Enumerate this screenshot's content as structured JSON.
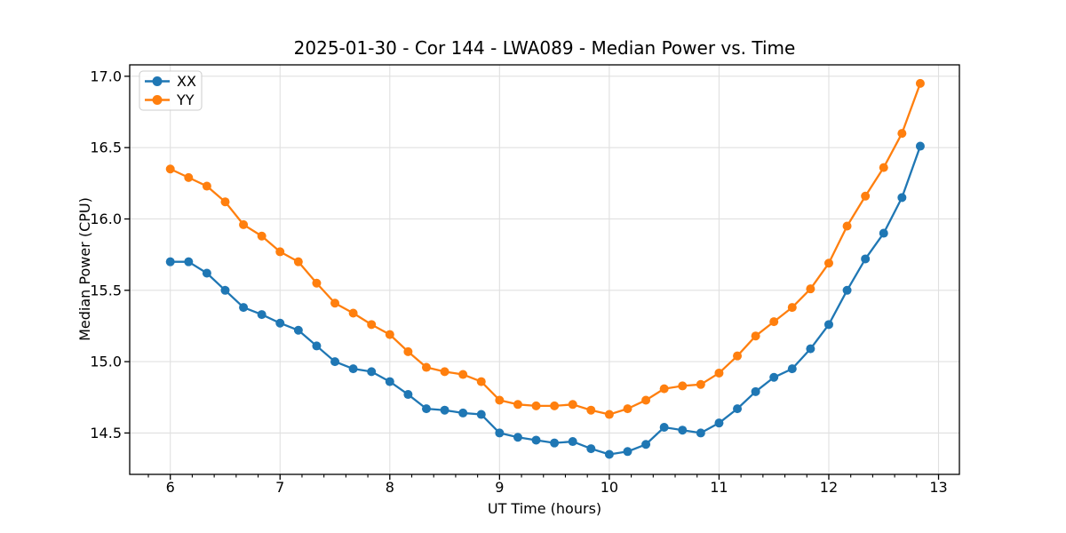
{
  "figure": {
    "background": "#ffffff"
  },
  "chart_data": {
    "type": "line",
    "title": "2025-01-30 - Cor 144 - LWA089 - Median Power vs. Time",
    "xlabel": "UT Time (hours)",
    "ylabel": "Median Power (CPU)",
    "xlim": [
      5.63,
      13.19
    ],
    "ylim": [
      14.21,
      17.08
    ],
    "x_ticks": [
      6,
      7,
      8,
      9,
      10,
      11,
      12,
      13
    ],
    "y_ticks": [
      14.5,
      15.0,
      15.5,
      16.0,
      16.5,
      17.0
    ],
    "x_minor_tick_step": 0.2,
    "grid": true,
    "legend_position": "upper-left",
    "x": [
      6.0,
      6.1667,
      6.3333,
      6.5,
      6.6667,
      6.8333,
      7.0,
      7.1667,
      7.3333,
      7.5,
      7.6667,
      7.8333,
      8.0,
      8.1667,
      8.3333,
      8.5,
      8.6667,
      8.8333,
      9.0,
      9.1667,
      9.3333,
      9.5,
      9.6667,
      9.8333,
      10.0,
      10.1667,
      10.3333,
      10.5,
      10.6667,
      10.8333,
      11.0,
      11.1667,
      11.3333,
      11.5,
      11.6667,
      11.8333,
      12.0,
      12.1667,
      12.3333,
      12.5,
      12.6667,
      12.8333
    ],
    "series": [
      {
        "name": "XX",
        "color": "#1f77b4",
        "values": [
          15.7,
          15.7,
          15.62,
          15.5,
          15.38,
          15.33,
          15.27,
          15.22,
          15.11,
          15.0,
          14.95,
          14.93,
          14.86,
          14.77,
          14.67,
          14.66,
          14.64,
          14.63,
          14.5,
          14.47,
          14.45,
          14.43,
          14.44,
          14.39,
          14.35,
          14.37,
          14.42,
          14.54,
          14.52,
          14.5,
          14.57,
          14.67,
          14.79,
          14.89,
          14.95,
          15.09,
          15.26,
          15.5,
          15.72,
          15.9,
          16.15,
          16.51
        ]
      },
      {
        "name": "YY",
        "color": "#ff7f0e",
        "values": [
          16.35,
          16.29,
          16.23,
          16.12,
          15.96,
          15.88,
          15.77,
          15.7,
          15.55,
          15.41,
          15.34,
          15.26,
          15.19,
          15.07,
          14.96,
          14.93,
          14.91,
          14.86,
          14.73,
          14.7,
          14.69,
          14.69,
          14.7,
          14.66,
          14.63,
          14.67,
          14.73,
          14.81,
          14.83,
          14.84,
          14.92,
          15.04,
          15.18,
          15.28,
          15.38,
          15.51,
          15.69,
          15.95,
          16.16,
          16.36,
          16.6,
          16.95
        ]
      }
    ]
  },
  "colors": {
    "grid": "#e0e0e0",
    "spine": "#000000",
    "text": "#000000",
    "legend_border": "#cccccc",
    "legend_bg": "#ffffff"
  }
}
